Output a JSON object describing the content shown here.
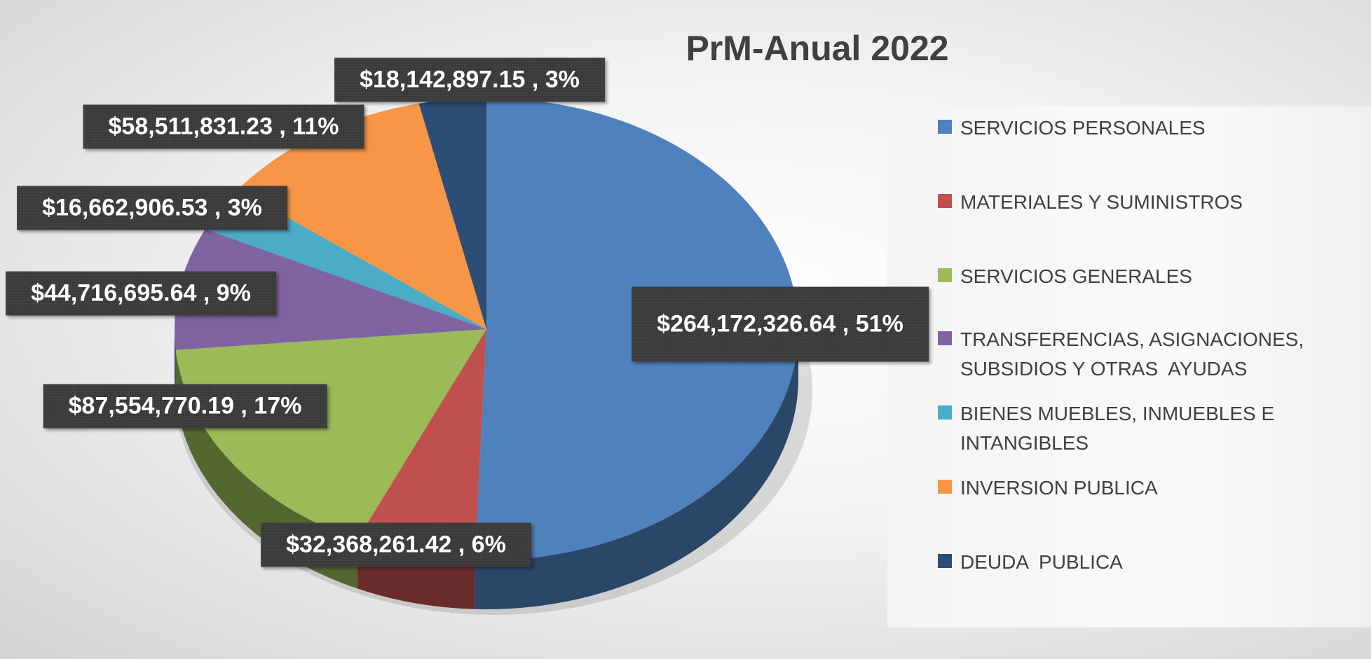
{
  "chart_data": {
    "type": "pie",
    "title": "PrM-Anual 2022",
    "categories": [
      "SERVICIOS PERSONALES",
      "MATERIALES Y SUMINISTROS",
      "SERVICIOS GENERALES",
      "TRANSFERENCIAS, ASIGNACIONES, SUBSIDIOS Y OTRAS  AYUDAS",
      "BIENES MUEBLES, INMUEBLES E INTANGIBLES",
      "INVERSION PUBLICA",
      "DEUDA  PUBLICA"
    ],
    "values": [
      264172326.64,
      32368261.42,
      87554770.19,
      44716695.64,
      16662906.53,
      58511831.23,
      18142897.15
    ],
    "value_labels": [
      "$264,172,326.64 , 51%",
      "$32,368,261.42 , 6%",
      "$87,554,770.19 , 17%",
      "$44,716,695.64 , 9%",
      "$16,662,906.53 , 3%",
      "$58,511,831.23 , 11%",
      "$18,142,897.15 , 3%"
    ],
    "colors": [
      "#4f81bd",
      "#c0504d",
      "#9bbb59",
      "#8064a2",
      "#4bacc6",
      "#f79646",
      "#2c4d75"
    ],
    "legend": "right"
  }
}
